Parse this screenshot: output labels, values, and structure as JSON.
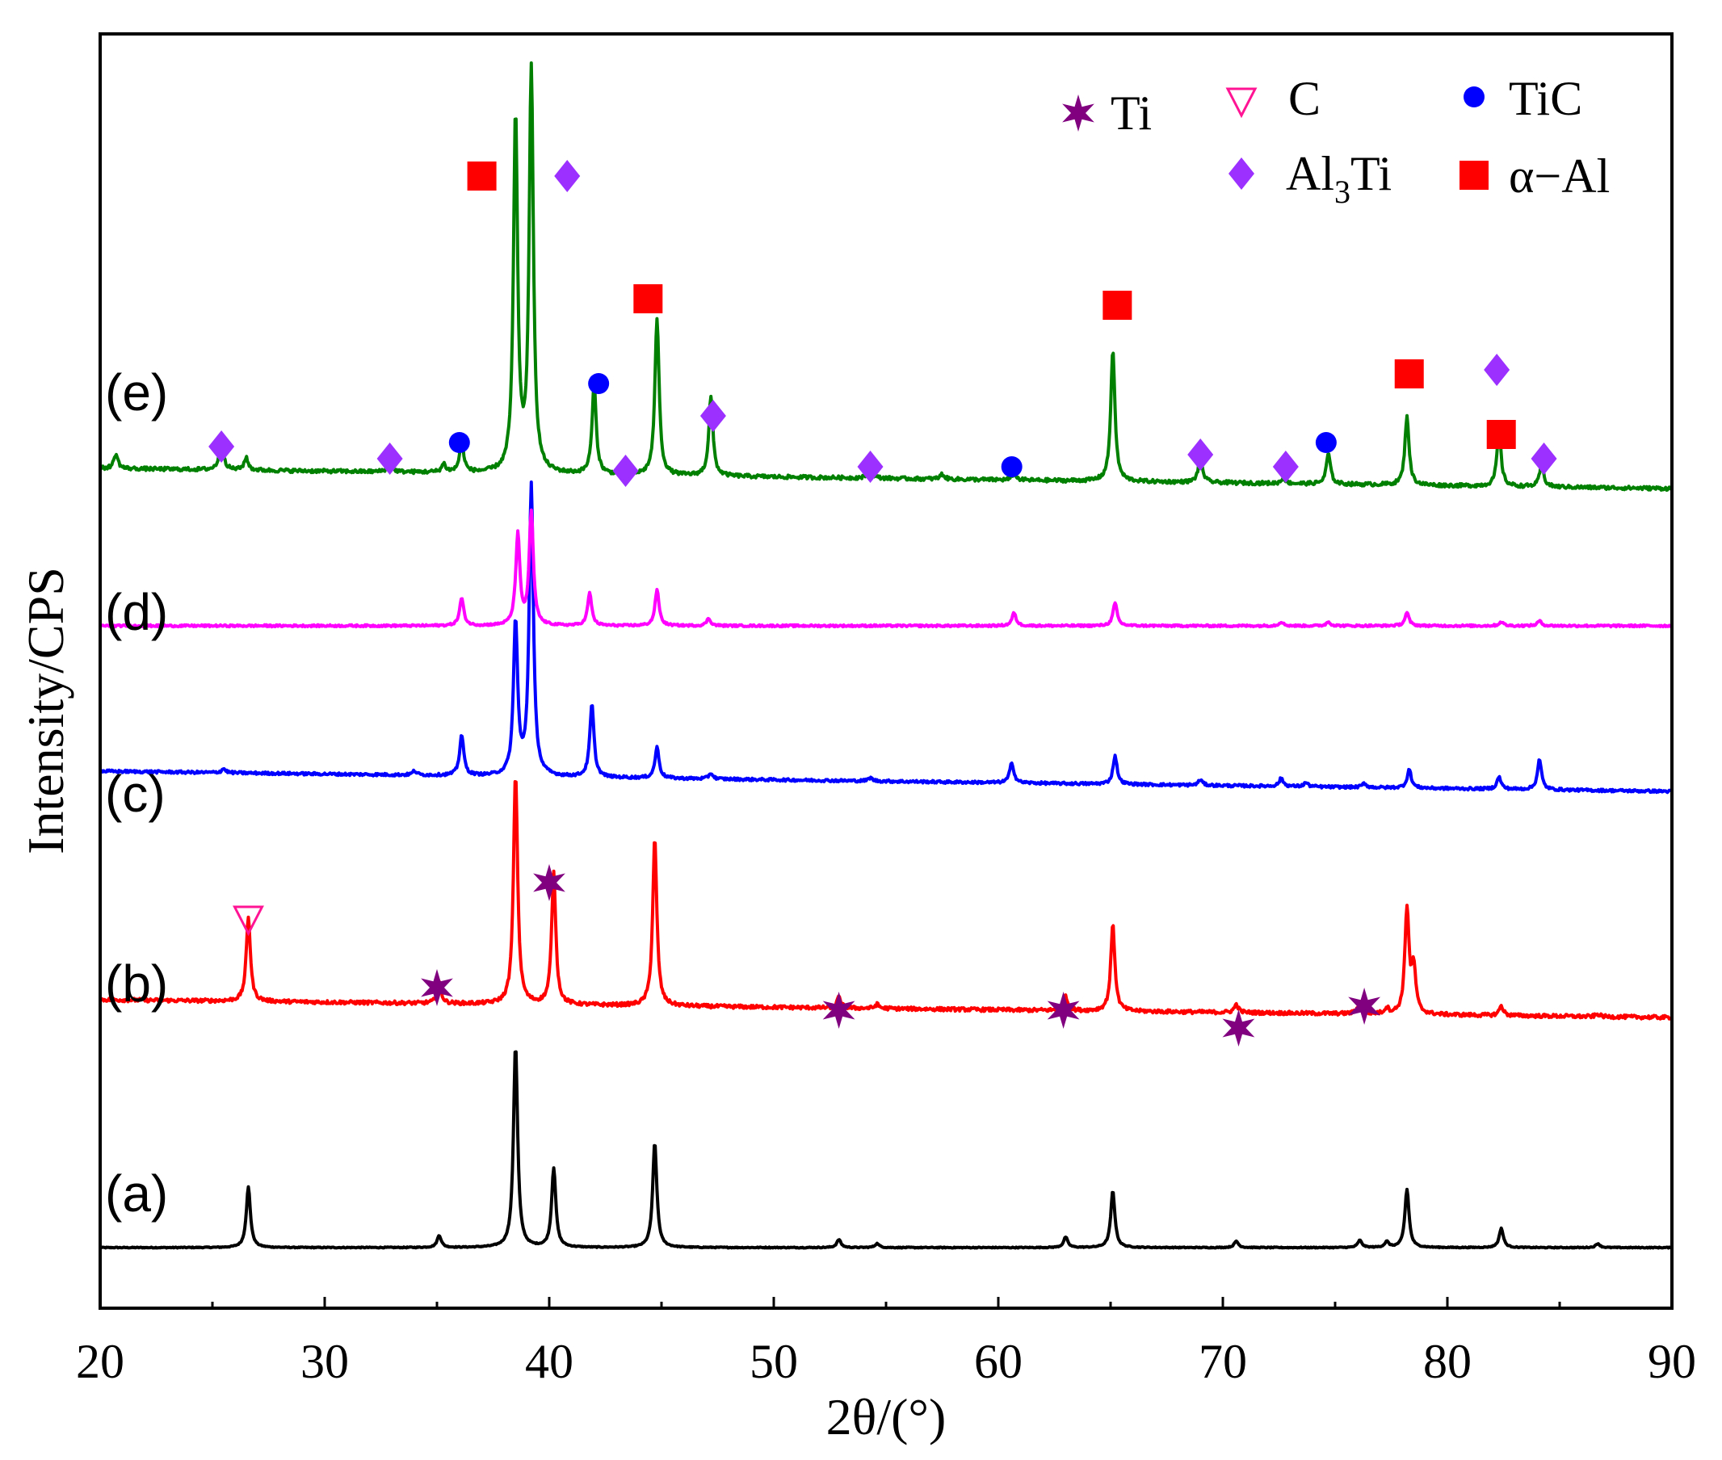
{
  "chart_data": {
    "type": "line",
    "title": "",
    "xlabel": "2θ/(°)",
    "ylabel": "Intensity/CPS",
    "xlim": [
      20,
      90
    ],
    "xticks": [
      20,
      30,
      40,
      50,
      60,
      70,
      80,
      90
    ],
    "grid": false,
    "legend_position": "top-right",
    "series": [
      {
        "name": "(a)",
        "color": "#000000",
        "baseline": 0,
        "max_height": 250,
        "peaks": [
          [
            26.6,
            75
          ],
          [
            35.1,
            15
          ],
          [
            38.5,
            250
          ],
          [
            40.2,
            98
          ],
          [
            44.7,
            130
          ],
          [
            52.9,
            10
          ],
          [
            54.6,
            5
          ],
          [
            63.0,
            13
          ],
          [
            65.1,
            70
          ],
          [
            70.6,
            8
          ],
          [
            76.1,
            9
          ],
          [
            77.3,
            7
          ],
          [
            78.2,
            72
          ],
          [
            82.4,
            24
          ],
          [
            86.7,
            5
          ]
        ]
      },
      {
        "name": "(b)",
        "color": "#ff0000",
        "baseline": 285,
        "max_height": 285,
        "peaks": [
          [
            26.6,
            105
          ],
          [
            35.1,
            25
          ],
          [
            38.5,
            285
          ],
          [
            40.2,
            162
          ],
          [
            44.7,
            207
          ],
          [
            52.9,
            13
          ],
          [
            54.6,
            5
          ],
          [
            63.0,
            17
          ],
          [
            65.1,
            107
          ],
          [
            70.6,
            10
          ],
          [
            76.1,
            15
          ],
          [
            77.3,
            7
          ],
          [
            78.2,
            130
          ],
          [
            78.5,
            55
          ],
          [
            82.4,
            12
          ],
          [
            86.7,
            3
          ]
        ]
      },
      {
        "name": "(c)",
        "color": "#0000ff",
        "baseline": 565,
        "max_height": 560,
        "peaks": [
          [
            25.5,
            5
          ],
          [
            34.0,
            5
          ],
          [
            36.1,
            50
          ],
          [
            38.5,
            190
          ],
          [
            39.2,
            360
          ],
          [
            41.9,
            90
          ],
          [
            44.8,
            38
          ],
          [
            47.2,
            7
          ],
          [
            54.3,
            4
          ],
          [
            60.6,
            25
          ],
          [
            65.2,
            35
          ],
          [
            69.0,
            7
          ],
          [
            72.6,
            10
          ],
          [
            73.7,
            5
          ],
          [
            76.3,
            5
          ],
          [
            78.3,
            23
          ],
          [
            82.3,
            15
          ],
          [
            84.1,
            37
          ]
        ]
      },
      {
        "name": "(d)",
        "color": "#ff00ff",
        "baseline": 770,
        "max_height": 140,
        "peaks": [
          [
            36.1,
            34
          ],
          [
            38.6,
            112
          ],
          [
            39.2,
            140
          ],
          [
            41.8,
            40
          ],
          [
            44.8,
            44
          ],
          [
            47.1,
            9
          ],
          [
            60.7,
            16
          ],
          [
            65.2,
            28
          ],
          [
            72.6,
            5
          ],
          [
            74.7,
            5
          ],
          [
            78.2,
            16
          ],
          [
            82.4,
            5
          ],
          [
            84.1,
            6
          ]
        ]
      },
      {
        "name": "(e)",
        "color": "#008000",
        "baseline": 940,
        "max_height": 500,
        "peaks": [
          [
            20.7,
            18
          ],
          [
            25.4,
            38
          ],
          [
            26.5,
            15
          ],
          [
            32.9,
            13
          ],
          [
            35.3,
            10
          ],
          [
            36.1,
            38
          ],
          [
            38.5,
            440
          ],
          [
            39.2,
            500
          ],
          [
            42.0,
            110
          ],
          [
            44.8,
            195
          ],
          [
            47.2,
            98
          ],
          [
            54.3,
            14
          ],
          [
            57.5,
            6
          ],
          [
            60.7,
            8
          ],
          [
            65.1,
            163
          ],
          [
            69.0,
            32
          ],
          [
            72.7,
            7
          ],
          [
            74.7,
            38
          ],
          [
            78.2,
            85
          ],
          [
            82.3,
            69
          ],
          [
            84.2,
            28
          ]
        ]
      }
    ],
    "phase_markers": [
      {
        "phase": "α-Al",
        "x": 37.0,
        "y": 1327
      },
      {
        "phase": "Al3Ti",
        "x": 40.8,
        "y": 1327
      },
      {
        "phase": "α-Al",
        "x": 44.4,
        "y": 1175
      },
      {
        "phase": "TiC",
        "x": 42.2,
        "y": 1070
      },
      {
        "phase": "Al3Ti",
        "x": 47.3,
        "y": 1030
      },
      {
        "phase": "Al3Ti",
        "x": 25.4,
        "y": 992
      },
      {
        "phase": "Al3Ti",
        "x": 32.9,
        "y": 977
      },
      {
        "phase": "TiC",
        "x": 36.0,
        "y": 997
      },
      {
        "phase": "Al3Ti",
        "x": 43.4,
        "y": 962
      },
      {
        "phase": "Al3Ti",
        "x": 54.3,
        "y": 967
      },
      {
        "phase": "TiC",
        "x": 60.6,
        "y": 967
      },
      {
        "phase": "α-Al",
        "x": 65.3,
        "y": 1167
      },
      {
        "phase": "Al3Ti",
        "x": 69.0,
        "y": 982
      },
      {
        "phase": "Al3Ti",
        "x": 72.8,
        "y": 967
      },
      {
        "phase": "TiC",
        "x": 74.6,
        "y": 997
      },
      {
        "phase": "α-Al",
        "x": 78.3,
        "y": 1082
      },
      {
        "phase": "Al3Ti",
        "x": 82.2,
        "y": 1087
      },
      {
        "phase": "α-Al",
        "x": 82.4,
        "y": 1007
      },
      {
        "phase": "Al3Ti",
        "x": 84.3,
        "y": 977
      },
      {
        "phase": "C",
        "x": 26.6,
        "y": 407
      },
      {
        "phase": "Ti",
        "x": 35.0,
        "y": 322
      },
      {
        "phase": "Ti",
        "x": 40.0,
        "y": 452
      },
      {
        "phase": "Ti",
        "x": 52.9,
        "y": 294
      },
      {
        "phase": "Ti",
        "x": 62.9,
        "y": 294
      },
      {
        "phase": "Ti",
        "x": 70.7,
        "y": 272
      },
      {
        "phase": "Ti",
        "x": 76.3,
        "y": 299
      }
    ],
    "legend": [
      {
        "phase": "Ti",
        "label": "Ti",
        "color": "#800080"
      },
      {
        "phase": "C",
        "label": "C",
        "color": "#ff1493"
      },
      {
        "phase": "TiC",
        "label": "TiC",
        "color": "#0000ff"
      },
      {
        "phase": "Al3Ti",
        "label_main": "Al",
        "label_sub": "3",
        "label_tail": "Ti",
        "color": "#9b30ff"
      },
      {
        "phase": "α-Al",
        "label": "α−Al",
        "color": "#ff0000"
      }
    ]
  }
}
